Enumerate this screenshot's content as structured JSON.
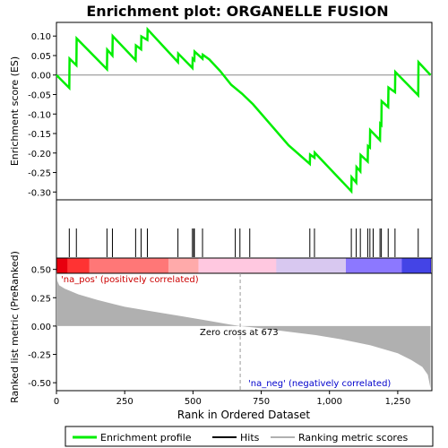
{
  "chart_data": {
    "type": "line",
    "title": "Enrichment plot: ORGANELLE FUSION",
    "xlabel": "Rank in Ordered Dataset",
    "xlim": [
      0,
      1375
    ],
    "x_ticks": [
      0,
      250,
      500,
      750,
      1000,
      1250
    ],
    "x_tick_labels": [
      "0",
      "250",
      "500",
      "750",
      "1,000",
      "1,250"
    ],
    "es_panel": {
      "ylabel": "Enrichment score (ES)",
      "ylim": [
        -0.32,
        0.135
      ],
      "y_ticks": [
        0.1,
        0.05,
        0.0,
        -0.05,
        -0.1,
        -0.15,
        -0.2,
        -0.25,
        -0.3
      ],
      "y_tick_labels": [
        "0.10",
        "0.05",
        "0.00",
        "-0.05",
        "-0.10",
        "-0.15",
        "-0.20",
        "-0.25",
        "-0.30"
      ],
      "color": "#00ee00",
      "points": [
        [
          0,
          0.0
        ],
        [
          47,
          -0.033
        ],
        [
          48,
          0.042
        ],
        [
          73,
          0.025
        ],
        [
          74,
          0.094
        ],
        [
          185,
          0.015
        ],
        [
          186,
          0.065
        ],
        [
          205,
          0.05
        ],
        [
          206,
          0.1
        ],
        [
          290,
          0.038
        ],
        [
          291,
          0.076
        ],
        [
          310,
          0.066
        ],
        [
          311,
          0.099
        ],
        [
          333,
          0.09
        ],
        [
          334,
          0.117
        ],
        [
          445,
          0.033
        ],
        [
          446,
          0.055
        ],
        [
          498,
          0.018
        ],
        [
          499,
          0.042
        ],
        [
          505,
          0.038
        ],
        [
          506,
          0.06
        ],
        [
          535,
          0.042
        ],
        [
          536,
          0.052
        ],
        [
          560,
          0.04
        ],
        [
          600,
          0.01
        ],
        [
          640,
          -0.025
        ],
        [
          680,
          -0.048
        ],
        [
          720,
          -0.075
        ],
        [
          850,
          -0.18
        ],
        [
          928,
          -0.228
        ],
        [
          929,
          -0.204
        ],
        [
          945,
          -0.212
        ],
        [
          946,
          -0.199
        ],
        [
          1080,
          -0.298
        ],
        [
          1081,
          -0.262
        ],
        [
          1098,
          -0.276
        ],
        [
          1099,
          -0.236
        ],
        [
          1113,
          -0.247
        ],
        [
          1114,
          -0.205
        ],
        [
          1140,
          -0.222
        ],
        [
          1141,
          -0.182
        ],
        [
          1148,
          -0.186
        ],
        [
          1149,
          -0.141
        ],
        [
          1185,
          -0.167
        ],
        [
          1186,
          -0.125
        ],
        [
          1190,
          -0.128
        ],
        [
          1191,
          -0.067
        ],
        [
          1215,
          -0.082
        ],
        [
          1216,
          -0.032
        ],
        [
          1240,
          -0.044
        ],
        [
          1241,
          0.008
        ],
        [
          1325,
          -0.052
        ],
        [
          1326,
          0.033
        ],
        [
          1370,
          0.0
        ]
      ]
    },
    "hits": [
      47,
      73,
      185,
      205,
      290,
      310,
      333,
      445,
      498,
      503,
      505,
      535,
      655,
      672,
      708,
      928,
      945,
      1080,
      1098,
      1113,
      1140,
      1148,
      1160,
      1185,
      1190,
      1215,
      1240,
      1325
    ],
    "ranked_panel": {
      "ylabel": "Ranked list metric (PreRanked)",
      "ylim": [
        -0.57,
        0.6
      ],
      "y_ticks": [
        0.5,
        0.25,
        0.0,
        -0.25,
        -0.5
      ],
      "y_tick_labels": [
        "0.50",
        "0.25",
        "0.00",
        "-0.25",
        "-0.50"
      ],
      "color": "#b0b0b0",
      "points": [
        [
          0,
          0.5
        ],
        [
          3,
          0.4
        ],
        [
          10,
          0.36
        ],
        [
          30,
          0.33
        ],
        [
          80,
          0.28
        ],
        [
          150,
          0.23
        ],
        [
          250,
          0.17
        ],
        [
          350,
          0.13
        ],
        [
          450,
          0.09
        ],
        [
          550,
          0.05
        ],
        [
          620,
          0.02
        ],
        [
          673,
          0.0
        ],
        [
          750,
          -0.02
        ],
        [
          850,
          -0.05
        ],
        [
          950,
          -0.08
        ],
        [
          1050,
          -0.12
        ],
        [
          1150,
          -0.17
        ],
        [
          1250,
          -0.24
        ],
        [
          1300,
          -0.3
        ],
        [
          1340,
          -0.36
        ],
        [
          1360,
          -0.43
        ],
        [
          1370,
          -0.55
        ]
      ]
    },
    "heatmap_colors": [
      "#e8000e",
      "#ff3333",
      "#ff7777",
      "#ffaaaa",
      "#ffc8e0",
      "#d8c8f0",
      "#8c78ff",
      "#4444e6",
      "#1a00c8"
    ],
    "annotations": {
      "pos_label": "'na_pos' (positively correlated)",
      "neg_label": "'na_neg' (negatively correlated)",
      "zero_cross": "Zero cross at 673"
    },
    "zero_cross_x": 673,
    "legend": {
      "placement": "bottom",
      "items": [
        {
          "label": "Enrichment profile",
          "color": "#00ee00"
        },
        {
          "label": "Hits",
          "color": "#000000"
        },
        {
          "label": "Ranking metric scores",
          "color": "#b0b0b0"
        }
      ]
    }
  }
}
